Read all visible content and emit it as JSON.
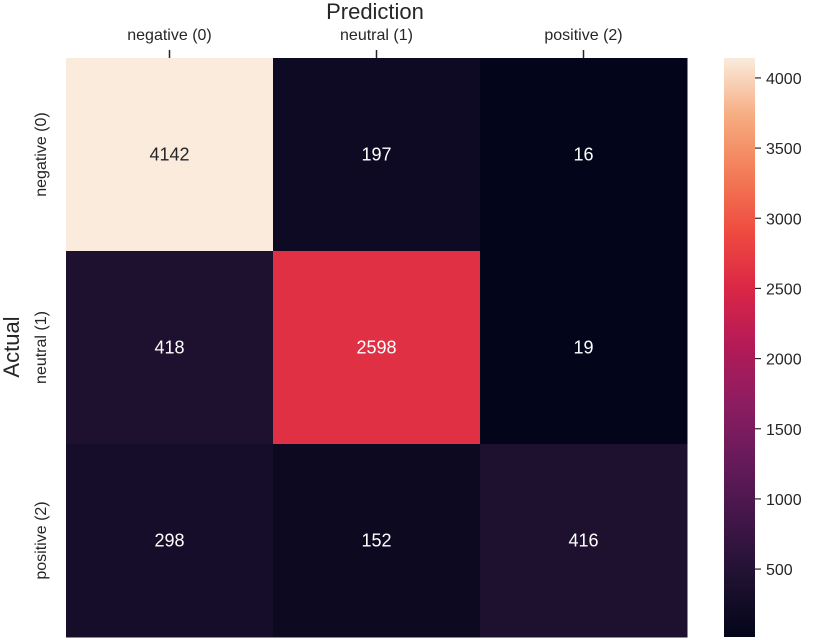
{
  "chart_data": {
    "type": "heatmap",
    "xlabel": "Prediction",
    "ylabel": "Actual",
    "x_categories": [
      "negative (0)",
      "neutral (1)",
      "positive (2)"
    ],
    "y_categories": [
      "negative (0)",
      "neutral (1)",
      "positive (2)"
    ],
    "values": [
      [
        4142,
        197,
        16
      ],
      [
        418,
        2598,
        19
      ],
      [
        298,
        152,
        416
      ]
    ],
    "colorbar": {
      "min": 16,
      "max": 4142,
      "ticks": [
        500,
        1000,
        1500,
        2000,
        2500,
        3000,
        3500,
        4000
      ],
      "colormap": "rocket"
    },
    "x_axis_position": "top",
    "grid": false
  }
}
